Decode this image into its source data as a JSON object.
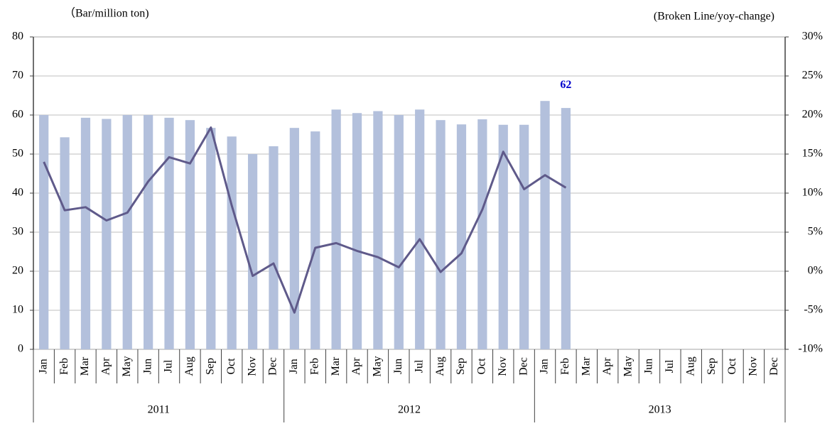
{
  "chart_data": {
    "type": "bar_line",
    "y_axis_label": "（Bar/million ton)",
    "y2_axis_label": "(Broken Line/yoy-change)",
    "categories": [
      "Jan",
      "Feb",
      "Mar",
      "Apr",
      "May",
      "Jun",
      "Jul",
      "Aug",
      "Sep",
      "Oct",
      "Nov",
      "Dec",
      "Jan",
      "Feb",
      "Mar",
      "Apr",
      "May",
      "Jun",
      "Jul",
      "Aug",
      "Sep",
      "Oct",
      "Nov",
      "Dec",
      "Jan",
      "Feb",
      "Mar",
      "Apr",
      "May",
      "Jun",
      "Jul",
      "Aug",
      "Sep",
      "Oct",
      "Nov",
      "Dec"
    ],
    "groups": [
      "2011",
      "2012",
      "2013"
    ],
    "series": [
      {
        "type": "bar",
        "color": "#b3c0dc",
        "values": [
          60,
          54.3,
          59.3,
          59,
          60,
          60,
          59.3,
          58.7,
          56.7,
          54.5,
          50,
          52,
          56.7,
          55.8,
          61.4,
          60.5,
          61,
          60,
          61.4,
          58.7,
          57.6,
          58.9,
          57.5,
          57.5,
          63.6,
          61.8,
          null,
          null,
          null,
          null,
          null,
          null,
          null,
          null,
          null,
          null
        ],
        "value_labels": [
          null,
          null,
          null,
          null,
          null,
          null,
          null,
          null,
          null,
          null,
          null,
          null,
          null,
          null,
          null,
          null,
          null,
          null,
          null,
          null,
          null,
          null,
          null,
          null,
          null,
          "62",
          null,
          null,
          null,
          null,
          null,
          null,
          null,
          null,
          null,
          null
        ],
        "value_label_color": "#0000cc"
      },
      {
        "type": "line",
        "axis": "y2",
        "color": "#5f5a8a",
        "values": [
          14.0,
          7.8,
          8.2,
          6.5,
          7.5,
          11.5,
          14.6,
          13.8,
          18.4,
          8.4,
          -0.6,
          1.0,
          -5.3,
          3.0,
          3.6,
          2.6,
          1.8,
          0.5,
          4.1,
          -0.1,
          2.3,
          7.9,
          15.3,
          10.5,
          12.3,
          10.7,
          null,
          null,
          null,
          null,
          null,
          null,
          null,
          null,
          null,
          null
        ]
      }
    ],
    "ylim": [
      0,
      80
    ],
    "yticks": [
      0,
      10,
      20,
      30,
      40,
      50,
      60,
      70,
      80
    ],
    "y2lim": [
      -10,
      30
    ],
    "y2ticks": [
      {
        "value": -10,
        "label": "-10%"
      },
      {
        "value": -5,
        "label": "-5%"
      },
      {
        "value": 0,
        "label": "0%"
      },
      {
        "value": 5,
        "label": "5%"
      },
      {
        "value": 10,
        "label": "10%"
      },
      {
        "value": 15,
        "label": "15%"
      },
      {
        "value": 20,
        "label": "20%"
      },
      {
        "value": 25,
        "label": "25%"
      },
      {
        "value": 30,
        "label": "30%"
      }
    ],
    "grid": true
  }
}
